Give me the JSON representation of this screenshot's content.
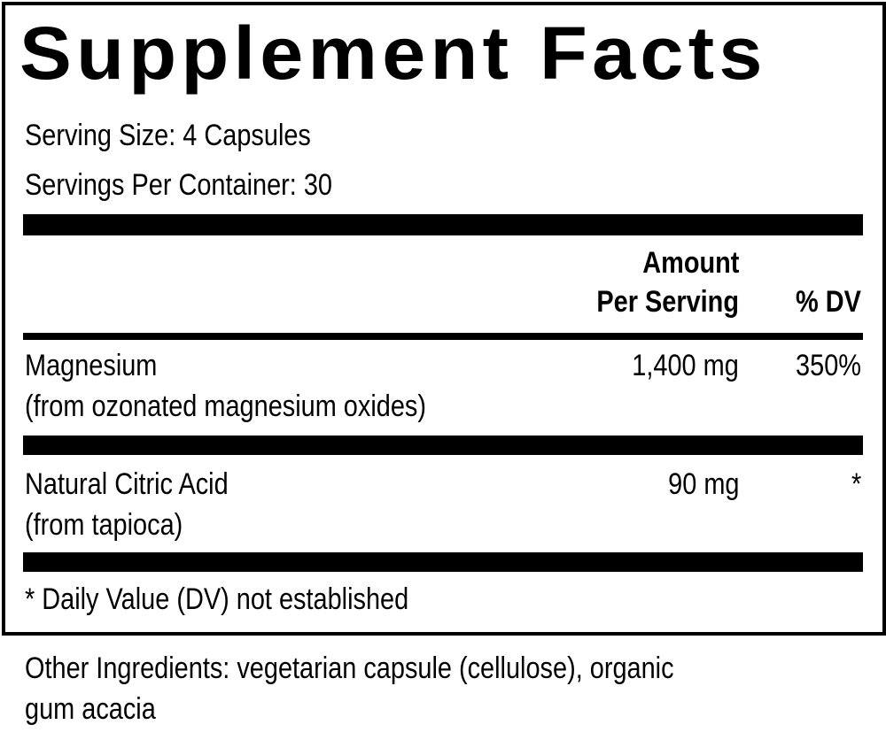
{
  "title": "Supplement Facts",
  "serving_size": "Serving Size: 4 Capsules",
  "servings_per_container": "Servings Per Container: 30",
  "header": {
    "amount_line1": "Amount",
    "amount_line2": "Per Serving",
    "dv": "% DV"
  },
  "rows": [
    {
      "name": "Magnesium",
      "source": "(from ozonated magnesium oxides)",
      "amount": "1,400 mg",
      "dv": "350%"
    },
    {
      "name": "Natural Citric Acid",
      "source": "(from tapioca)",
      "amount": "90 mg",
      "dv": "*"
    }
  ],
  "footnote": "* Daily Value (DV) not established",
  "other_ingredients_line1": "Other Ingredients: vegetarian capsule (cellulose), organic",
  "other_ingredients_line2": "gum acacia"
}
